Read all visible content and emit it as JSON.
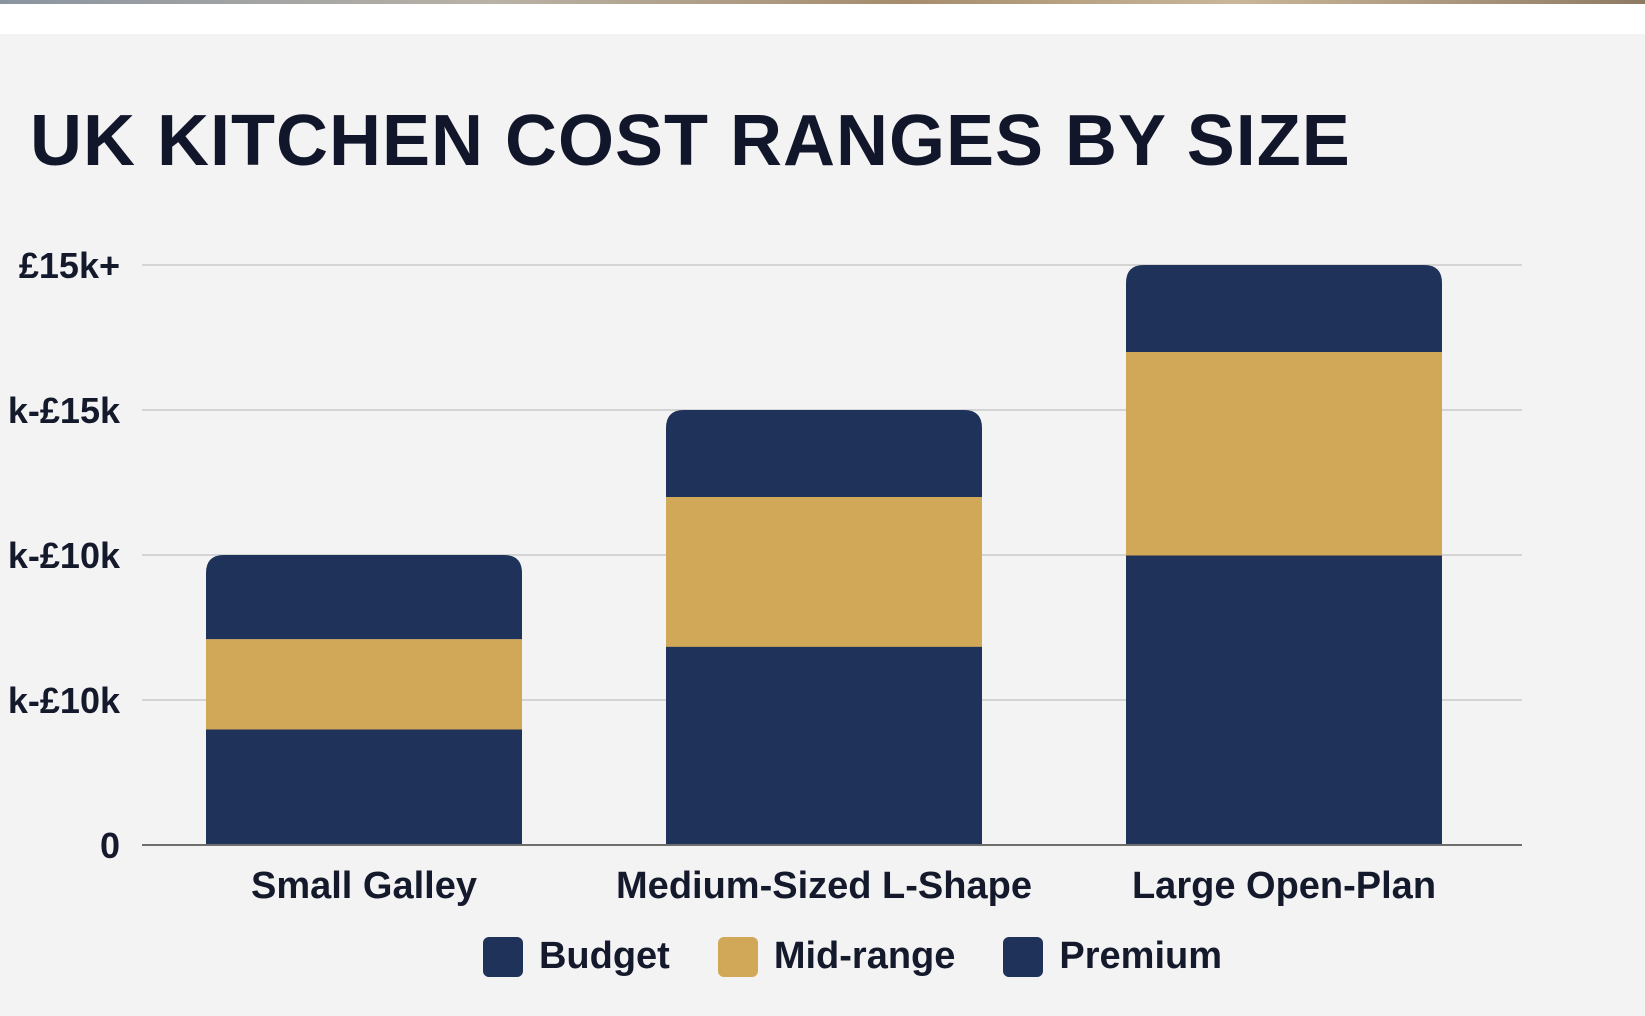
{
  "chart_data": {
    "type": "bar",
    "stacked": true,
    "title": "UK KITCHEN COST RANGES BY SIZE",
    "xlabel": "",
    "ylabel": "",
    "categories": [
      "Small Galley",
      "Medium-Sized L-Shape",
      "Large Open-Plan"
    ],
    "y_tick_labels": [
      "0",
      "k-£10k",
      "k-£10k",
      "k-£15k",
      "£15k+"
    ],
    "ylim": [
      0,
      4
    ],
    "grid": true,
    "legend_position": "bottom-center",
    "series": [
      {
        "name": "Budget",
        "color": "#1f325a",
        "values": [
          0.8,
          1.37,
          2.0
        ]
      },
      {
        "name": "Mid-range",
        "color": "#d1a758",
        "values": [
          0.62,
          1.03,
          1.4
        ]
      },
      {
        "name": "Premium",
        "color": "#1f325a",
        "values": [
          0.58,
          0.6,
          0.6
        ]
      }
    ]
  }
}
